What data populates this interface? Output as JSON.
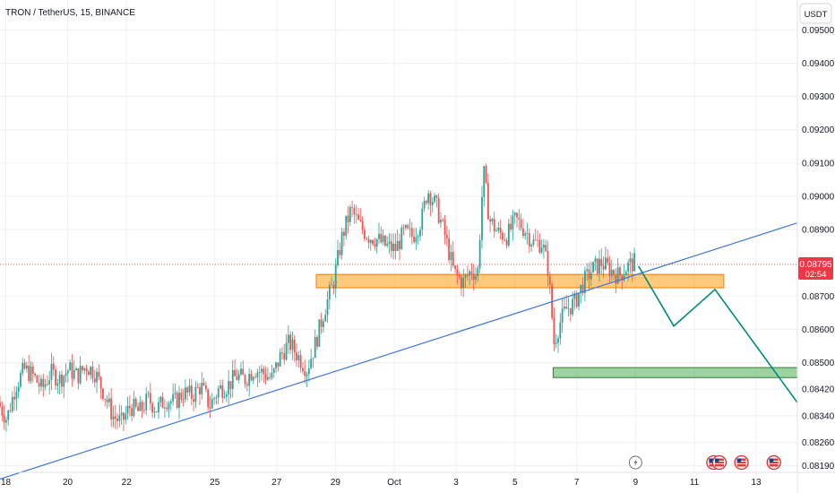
{
  "header": {
    "title": "TRON / TetherUS, 15, BINANCE",
    "currency_button": "USDT"
  },
  "price_tag": {
    "price": "0.08795",
    "countdown": "02:54",
    "color": "#f23645"
  },
  "colors": {
    "up": "#26a69a",
    "down": "#ef5350",
    "trendline": "#3d77e0",
    "resistance_zone": "#ffa726",
    "support_zone": "#4caf50",
    "projection": "#00897b",
    "current_price_line": "#ef5350"
  },
  "chart_data": {
    "type": "candlestick",
    "symbol": "TRON / TetherUS",
    "interval": "15",
    "exchange": "BINANCE",
    "ylim": [
      0.0817,
      0.0959
    ],
    "y_ticks": [
      "0.09500",
      "0.09400",
      "0.09300",
      "0.09200",
      "0.09100",
      "0.09000",
      "0.08900",
      "0.08700",
      "0.08600",
      "0.08500",
      "0.08420",
      "0.08340",
      "0.08260",
      "0.08190"
    ],
    "x_ticks": [
      "18",
      "20",
      "22",
      "25",
      "27",
      "29",
      "Oct",
      "3",
      "5",
      "7",
      "9",
      "11",
      "13"
    ],
    "x_range": [
      0,
      27.1
    ],
    "x_tick_positions": [
      0.2,
      2.3,
      4.3,
      7.3,
      9.4,
      11.4,
      13.4,
      15.5,
      17.5,
      19.6,
      21.6,
      23.6,
      25.7
    ],
    "price_path": [
      [
        0.0,
        0.0838
      ],
      [
        0.3,
        0.0833
      ],
      [
        0.6,
        0.0843
      ],
      [
        0.9,
        0.0848
      ],
      [
        1.2,
        0.0846
      ],
      [
        1.5,
        0.0842
      ],
      [
        1.8,
        0.0847
      ],
      [
        2.1,
        0.0845
      ],
      [
        2.4,
        0.0848
      ],
      [
        2.7,
        0.0846
      ],
      [
        3.0,
        0.0849
      ],
      [
        3.3,
        0.0847
      ],
      [
        3.6,
        0.0841
      ],
      [
        3.9,
        0.0834
      ],
      [
        4.2,
        0.0832
      ],
      [
        4.5,
        0.0837
      ],
      [
        4.8,
        0.0835
      ],
      [
        5.1,
        0.0839
      ],
      [
        5.4,
        0.0836
      ],
      [
        5.7,
        0.0839
      ],
      [
        6.0,
        0.0838
      ],
      [
        6.3,
        0.0841
      ],
      [
        6.6,
        0.084
      ],
      [
        6.9,
        0.0843
      ],
      [
        7.2,
        0.0837
      ],
      [
        7.5,
        0.0842
      ],
      [
        7.8,
        0.0843
      ],
      [
        8.1,
        0.0846
      ],
      [
        8.4,
        0.0845
      ],
      [
        8.7,
        0.0848
      ],
      [
        9.0,
        0.0847
      ],
      [
        9.3,
        0.0845
      ],
      [
        9.6,
        0.0852
      ],
      [
        9.9,
        0.0856
      ],
      [
        10.2,
        0.0852
      ],
      [
        10.5,
        0.0848
      ],
      [
        10.8,
        0.0856
      ],
      [
        11.1,
        0.0866
      ],
      [
        11.4,
        0.0874
      ],
      [
        11.7,
        0.0888
      ],
      [
        12.0,
        0.0896
      ],
      [
        12.3,
        0.0891
      ],
      [
        12.6,
        0.0888
      ],
      [
        12.9,
        0.0887
      ],
      [
        13.2,
        0.0885
      ],
      [
        13.5,
        0.0884
      ],
      [
        13.8,
        0.0889
      ],
      [
        14.1,
        0.0888
      ],
      [
        14.4,
        0.0893
      ],
      [
        14.6,
        0.0902
      ],
      [
        14.9,
        0.0897
      ],
      [
        15.2,
        0.0888
      ],
      [
        15.5,
        0.0877
      ],
      [
        15.8,
        0.0874
      ],
      [
        16.1,
        0.0878
      ],
      [
        16.3,
        0.0876
      ],
      [
        16.5,
        0.0908
      ],
      [
        16.7,
        0.0893
      ],
      [
        17.0,
        0.0889
      ],
      [
        17.3,
        0.0888
      ],
      [
        17.6,
        0.0893
      ],
      [
        17.9,
        0.089
      ],
      [
        18.2,
        0.0886
      ],
      [
        18.5,
        0.0886
      ],
      [
        18.7,
        0.0878
      ],
      [
        18.9,
        0.0856
      ],
      [
        19.1,
        0.0862
      ],
      [
        19.3,
        0.0866
      ],
      [
        19.6,
        0.0868
      ],
      [
        19.9,
        0.0874
      ],
      [
        20.2,
        0.0878
      ],
      [
        20.5,
        0.088
      ],
      [
        20.8,
        0.0878
      ],
      [
        21.1,
        0.0876
      ],
      [
        21.4,
        0.0879
      ],
      [
        21.6,
        0.088
      ]
    ],
    "resistance_zone": {
      "x_start": 10.75,
      "x_end": 24.6,
      "y_low": 0.08725,
      "y_high": 0.08765
    },
    "support_zone": {
      "x_start": 18.8,
      "x_end": 27.1,
      "y_low": 0.08455,
      "y_high": 0.08485
    },
    "trendline": [
      [
        0.0,
        0.0815
      ],
      [
        27.1,
        0.0892
      ]
    ],
    "projection_path": [
      [
        21.7,
        0.0879
      ],
      [
        22.9,
        0.0861
      ],
      [
        24.3,
        0.0872
      ],
      [
        27.1,
        0.0838
      ]
    ],
    "current_price": 0.08795,
    "events": {
      "lightning_x": 21.6,
      "flag_xs": [
        24.25,
        24.45,
        25.2,
        26.3
      ]
    }
  }
}
